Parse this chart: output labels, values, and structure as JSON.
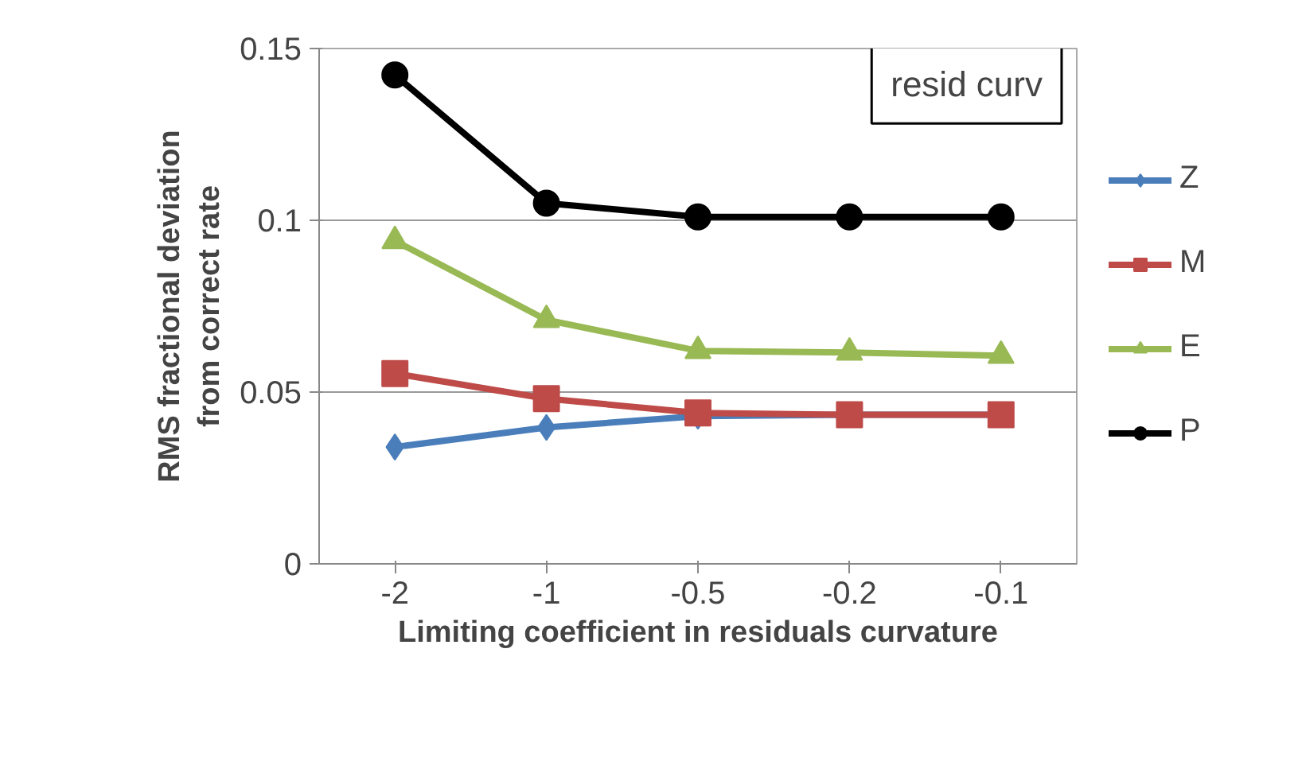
{
  "chart_data": {
    "type": "line",
    "xlabel": "Limiting coefficient in residuals curvature",
    "ylabel": "RMS fractional deviation\nfrom correct rate",
    "categories": [
      "-2",
      "-1",
      "-0.5",
      "-0.2",
      "-0.1"
    ],
    "series": [
      {
        "name": "Z",
        "color": "#4a7ebb",
        "marker": "diamond",
        "values": [
          0.034,
          0.0397,
          0.043,
          0.0434,
          0.0434
        ]
      },
      {
        "name": "M",
        "color": "#be4b48",
        "marker": "square",
        "values": [
          0.0554,
          0.0481,
          0.0439,
          0.0434,
          0.0434
        ]
      },
      {
        "name": "E",
        "color": "#98b954",
        "marker": "triangle",
        "values": [
          0.094,
          0.071,
          0.062,
          0.0615,
          0.0606
        ]
      },
      {
        "name": "P",
        "color": "#000000",
        "marker": "circle",
        "values": [
          0.1423,
          0.105,
          0.101,
          0.101,
          0.101
        ]
      }
    ],
    "ylim": [
      0,
      0.15
    ],
    "yticks": [
      0,
      0.05,
      0.1,
      0.15
    ],
    "grid": "y",
    "legend": "right",
    "annotations": [
      "resid curv"
    ]
  }
}
